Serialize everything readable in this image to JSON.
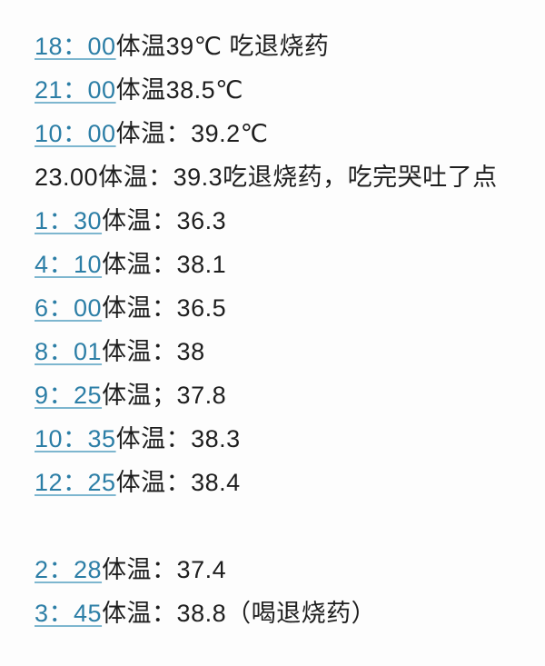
{
  "page": {
    "background_color": "#fdfdfd",
    "text_color": "#1e1e1e",
    "link_color": "#2c7ea6"
  },
  "records": [
    {
      "time": "18：00",
      "time_is_link": true,
      "text": "体温39℃ 吃退烧药"
    },
    {
      "time": "21：00",
      "time_is_link": true,
      "text": "体温38.5℃"
    },
    {
      "time": "10：00",
      "time_is_link": true,
      "text": "体温：39.2℃"
    },
    {
      "time": "23.00",
      "time_is_link": false,
      "text": "体温：39.3吃退烧药，吃完哭吐了点"
    },
    {
      "time": "1：30",
      "time_is_link": true,
      "text": "体温：36.3"
    },
    {
      "time": "4：10",
      "time_is_link": true,
      "text": "体温：38.1"
    },
    {
      "time": "6：00",
      "time_is_link": true,
      "text": "体温：36.5"
    },
    {
      "time": "8：01",
      "time_is_link": true,
      "text": "体温：38"
    },
    {
      "time": "9：25",
      "time_is_link": true,
      "text": "体温；37.8"
    },
    {
      "time": "10：35",
      "time_is_link": true,
      "text": "体温：38.3"
    },
    {
      "time": "12：25",
      "time_is_link": true,
      "text": "体温：38.4"
    },
    {
      "time": "2：28",
      "time_is_link": true,
      "text": "体温：37.4"
    },
    {
      "time": "3：45",
      "time_is_link": true,
      "text": "体温：38.8（喝退烧药）"
    }
  ]
}
